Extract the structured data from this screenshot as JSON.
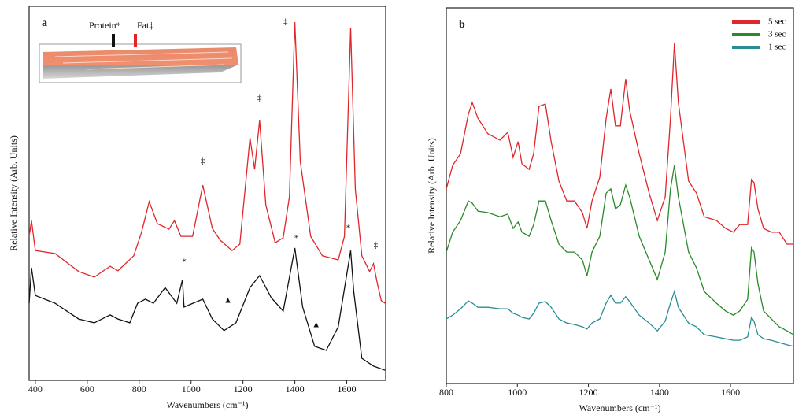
{
  "chart_data": [
    {
      "type": "line",
      "panel_label": "a",
      "xlabel": "Wavenumbers (cm⁻¹)",
      "ylabel": "Relative Intensity (Arb. Units)",
      "xlim": [
        376,
        1750
      ],
      "ylim": [
        0,
        100
      ],
      "xticks": [
        400,
        600,
        800,
        1000,
        1200,
        1400,
        1600
      ],
      "series": [
        {
          "name": "Protein*",
          "color": "#111111",
          "x": [
            376,
            385,
            400,
            476,
            567,
            627,
            688,
            718,
            764,
            794,
            824,
            855,
            900,
            945,
            967,
            973,
            1045,
            1082,
            1127,
            1173,
            1227,
            1264,
            1309,
            1355,
            1400,
            1430,
            1476,
            1521,
            1567,
            1615,
            1627,
            1658,
            1703,
            1748
          ],
          "values": [
            20.6,
            30.1,
            22.7,
            20.6,
            16.4,
            15.4,
            17.5,
            16.4,
            15.4,
            20.6,
            21.7,
            20.6,
            24.8,
            20.6,
            26.9,
            19.6,
            21.7,
            16.4,
            13.3,
            15.4,
            24.8,
            28,
            22.1,
            18.5,
            35.4,
            19.6,
            9.1,
            8,
            14.3,
            34.7,
            23.8,
            5.9,
            3.8,
            2.7
          ]
        },
        {
          "name": "Fat‡",
          "color": "#e0262b",
          "x": [
            376,
            385,
            400,
            476,
            567,
            627,
            688,
            718,
            779,
            809,
            839,
            870,
            915,
            936,
            961,
            1006,
            1045,
            1082,
            1112,
            1158,
            1188,
            1227,
            1245,
            1264,
            1288,
            1324,
            1355,
            1379,
            1400,
            1421,
            1461,
            1506,
            1567,
            1591,
            1615,
            1633,
            1658,
            1688,
            1703,
            1718,
            1733,
            1748
          ],
          "values": [
            38.5,
            42.7,
            34.7,
            33.9,
            29.1,
            27.6,
            30.5,
            29.3,
            33.3,
            39.6,
            47.8,
            41.9,
            40.4,
            42.7,
            38.5,
            38.5,
            52.2,
            40.6,
            37.5,
            34.7,
            36.4,
            64.8,
            56.4,
            69.5,
            46.9,
            36.8,
            38.1,
            49.1,
            95.8,
            58.5,
            38.5,
            33.3,
            32.2,
            38.5,
            94.3,
            51.2,
            33.3,
            29.1,
            31.2,
            25.9,
            21.3,
            20.6
          ]
        }
      ],
      "annotations": [
        {
          "text": "‡",
          "x": 1045,
          "y": 58.5,
          "color": "#e0262b"
        },
        {
          "text": "‡",
          "x": 1264,
          "y": 75.4,
          "color": "#e0262b"
        },
        {
          "text": "‡",
          "x": 1364,
          "y": 95.8,
          "color": "#e0262b"
        },
        {
          "text": "‡",
          "x": 1712,
          "y": 36,
          "color": "#e0262b"
        },
        {
          "text": "*",
          "x": 973,
          "y": 31.6,
          "color": "#111111"
        },
        {
          "text": "*",
          "x": 1406,
          "y": 37.9,
          "color": "#111111"
        },
        {
          "text": "*",
          "x": 1606,
          "y": 40.6,
          "color": "#111111"
        },
        {
          "text": "▲",
          "x": 1142,
          "y": 21.3,
          "color": "#111111"
        },
        {
          "text": "▲",
          "x": 1482,
          "y": 14.7,
          "color": "#111111"
        }
      ]
    },
    {
      "type": "line",
      "panel_label": "b",
      "xlabel": "Wavenumbers (cm⁻¹)",
      "ylabel": "Relative Intensity (Arb. Units)",
      "xlim": [
        800,
        1777
      ],
      "ylim": [
        0,
        100
      ],
      "xticks": [
        800,
        1000,
        1200,
        1400,
        1600
      ],
      "legend": "upper right",
      "x": [
        800,
        818,
        840,
        862,
        873,
        889,
        917,
        951,
        973,
        988,
        1002,
        1013,
        1033,
        1046,
        1061,
        1079,
        1095,
        1117,
        1139,
        1161,
        1183,
        1196,
        1210,
        1232,
        1250,
        1263,
        1276,
        1290,
        1305,
        1316,
        1343,
        1371,
        1394,
        1416,
        1431,
        1442,
        1453,
        1482,
        1504,
        1526,
        1560,
        1586,
        1608,
        1626,
        1648,
        1659,
        1666,
        1677,
        1693,
        1715,
        1737,
        1759,
        1777
      ],
      "series": [
        {
          "name": "5 sec",
          "color": "#e0262b",
          "values": [
            51.8,
            58.1,
            61.2,
            71.7,
            74.8,
            70.6,
            66.5,
            64.8,
            66.9,
            60.2,
            64.4,
            58.5,
            57,
            61.2,
            73.8,
            74.4,
            64.4,
            53.9,
            48.6,
            48.6,
            45.5,
            41.3,
            48.6,
            54.9,
            70.6,
            78.4,
            68.6,
            68.6,
            81.1,
            72.7,
            61.2,
            50.7,
            43.4,
            49.7,
            70.6,
            90.6,
            74.8,
            53.9,
            50.7,
            44.4,
            43.4,
            41.3,
            40.3,
            42.3,
            42.3,
            54.3,
            53.5,
            46.5,
            41.3,
            40.3,
            40.3,
            37.1,
            37.1
          ]
        },
        {
          "name": "3 sec",
          "color": "#2a8a2a",
          "values": [
            35,
            40.3,
            43.4,
            48.6,
            48,
            45.9,
            45.5,
            44.4,
            45.1,
            41.3,
            43,
            40.3,
            39.2,
            42.3,
            48.6,
            48.6,
            43.4,
            37.1,
            35,
            35,
            32.9,
            28.7,
            35,
            39.2,
            50.7,
            51.8,
            46.5,
            47.6,
            52.8,
            49.7,
            39.2,
            32.9,
            27.7,
            35,
            51.8,
            58.1,
            49.7,
            35,
            30.8,
            24.5,
            21.4,
            19.3,
            18.2,
            19.3,
            22.4,
            36.1,
            35,
            26.6,
            19.3,
            17.2,
            15.1,
            14,
            13
          ]
        },
        {
          "name": "1 sec",
          "color": "#2a8c96",
          "values": [
            17.2,
            18.2,
            19.9,
            22,
            21.4,
            20.3,
            20.3,
            19.9,
            19.9,
            18.7,
            18.2,
            17.6,
            17.2,
            18.7,
            21.4,
            21.8,
            20.3,
            17.2,
            16.1,
            15.7,
            15.1,
            14.5,
            16.1,
            17.2,
            21.4,
            23.5,
            21.4,
            21.4,
            23.1,
            21.8,
            18.2,
            16.1,
            14,
            16.6,
            21.4,
            24.5,
            20.3,
            16.1,
            15.1,
            13,
            12.4,
            11.9,
            11.5,
            11.5,
            12.4,
            17.6,
            16.6,
            13,
            11.9,
            11.5,
            10.9,
            10.3,
            9.9
          ]
        }
      ]
    }
  ]
}
